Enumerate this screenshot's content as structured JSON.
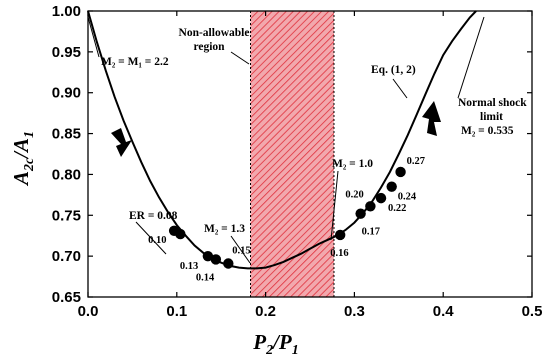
{
  "chart_data": {
    "type": "scatter",
    "xlabel_main": "P",
    "xlabel_num_sub": "2",
    "xlabel_slash": "/",
    "xlabel_den": "P",
    "xlabel_den_sub": "1",
    "ylabel_main": "A",
    "ylabel_num_sub": "2c",
    "ylabel_slash": "/",
    "ylabel_den": "A",
    "ylabel_den_sub": "1",
    "xlim": [
      0.0,
      0.5
    ],
    "ylim": [
      0.65,
      1.0
    ],
    "xticks": [
      "0.0",
      "0.1",
      "0.2",
      "0.3",
      "0.4",
      "0.5"
    ],
    "yticks": [
      "0.65",
      "0.70",
      "0.75",
      "0.80",
      "0.85",
      "0.90",
      "0.95",
      "1.00"
    ],
    "non_allowable_region": {
      "x_start": 0.183,
      "x_end": 0.277,
      "label_line1": "Non-allowable",
      "label_line2": "region"
    },
    "curve": {
      "x": [
        0.0,
        0.01,
        0.02,
        0.03,
        0.04,
        0.05,
        0.06,
        0.07,
        0.08,
        0.09,
        0.1,
        0.11,
        0.12,
        0.13,
        0.14,
        0.15,
        0.16,
        0.17,
        0.18,
        0.19,
        0.2,
        0.21,
        0.22,
        0.23,
        0.24,
        0.25,
        0.26,
        0.27,
        0.28,
        0.29,
        0.3,
        0.31,
        0.32,
        0.33,
        0.34,
        0.35,
        0.36,
        0.37,
        0.38,
        0.39,
        0.4,
        0.41,
        0.42,
        0.43,
        0.437
      ],
      "y": [
        1.0,
        0.962,
        0.927,
        0.895,
        0.866,
        0.84,
        0.815,
        0.792,
        0.772,
        0.754,
        0.738,
        0.725,
        0.713,
        0.704,
        0.697,
        0.692,
        0.688,
        0.686,
        0.685,
        0.685,
        0.686,
        0.689,
        0.693,
        0.698,
        0.703,
        0.709,
        0.715,
        0.72,
        0.725,
        0.732,
        0.741,
        0.753,
        0.767,
        0.784,
        0.803,
        0.825,
        0.848,
        0.873,
        0.898,
        0.923,
        0.946,
        0.963,
        0.978,
        0.992,
        1.0
      ]
    },
    "points": [
      {
        "x": 0.097,
        "y": 0.731,
        "label": "0.10"
      },
      {
        "x": 0.104,
        "y": 0.727,
        "label": ""
      },
      {
        "x": 0.135,
        "y": 0.7,
        "label": "0.13"
      },
      {
        "x": 0.144,
        "y": 0.696,
        "label": "0.14"
      },
      {
        "x": 0.158,
        "y": 0.691,
        "label": "0.15"
      },
      {
        "x": 0.284,
        "y": 0.726,
        "label": "0.16"
      },
      {
        "x": 0.307,
        "y": 0.752,
        "label": "0.17"
      },
      {
        "x": 0.318,
        "y": 0.761,
        "label": "0.20"
      },
      {
        "x": 0.33,
        "y": 0.771,
        "label": "0.22"
      },
      {
        "x": 0.342,
        "y": 0.785,
        "label": "0.24"
      },
      {
        "x": 0.352,
        "y": 0.803,
        "label": "0.27"
      }
    ],
    "annotations": {
      "m2_m1": "M₂ = M₁ = 2.2",
      "er": "ER = 0.08",
      "m13": "M₂ = 1.3",
      "m10": "M₂ = 1.0",
      "eq": "Eq. (1, 2)",
      "ns1": "Normal shock",
      "ns2": "limit",
      "ns3": "M₂ = 0.535"
    },
    "colors": {
      "region_fill": "#f2a8ad",
      "region_hatch": "#e0303c",
      "curve": "#000000",
      "points": "#000000"
    },
    "grid": false,
    "legend": "none"
  }
}
